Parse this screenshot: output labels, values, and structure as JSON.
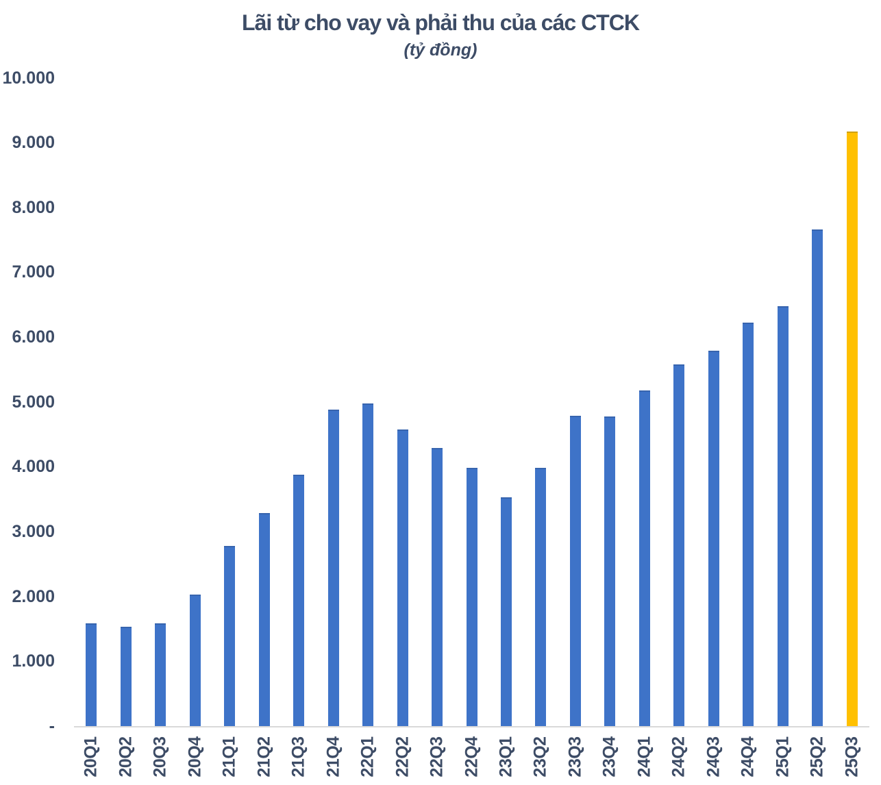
{
  "chart_data": {
    "type": "bar",
    "title": "Lãi từ cho vay và phải thu của các CTCK",
    "subtitle": "(tỷ đồng)",
    "categories": [
      "20Q1",
      "20Q2",
      "20Q3",
      "20Q4",
      "21Q1",
      "21Q2",
      "21Q3",
      "21Q4",
      "22Q1",
      "22Q2",
      "22Q3",
      "22Q4",
      "23Q1",
      "23Q2",
      "23Q3",
      "23Q4",
      "24Q1",
      "24Q2",
      "24Q3",
      "24Q4",
      "25Q1",
      "25Q2",
      "25Q3"
    ],
    "values": [
      1590,
      1540,
      1590,
      2030,
      2780,
      3290,
      3880,
      4890,
      4980,
      4580,
      4290,
      3990,
      3530,
      3990,
      4790,
      4780,
      5180,
      5580,
      5790,
      6230,
      6480,
      7670,
      9180
    ],
    "highlight_index": 22,
    "xlabel": "",
    "ylabel": "",
    "ylim": [
      0,
      10000
    ],
    "y_tick_step": 1000,
    "y_tick_labels": [
      "-",
      "1.000",
      "2.000",
      "3.000",
      "4.000",
      "5.000",
      "6.000",
      "7.000",
      "8.000",
      "9.000",
      "10.000"
    ],
    "grid": false,
    "legend": false,
    "colors": {
      "bar": "#3e73c8",
      "highlight": "#ffc000",
      "text": "#3d4c66",
      "axis_line": "#d9d9d9"
    }
  }
}
